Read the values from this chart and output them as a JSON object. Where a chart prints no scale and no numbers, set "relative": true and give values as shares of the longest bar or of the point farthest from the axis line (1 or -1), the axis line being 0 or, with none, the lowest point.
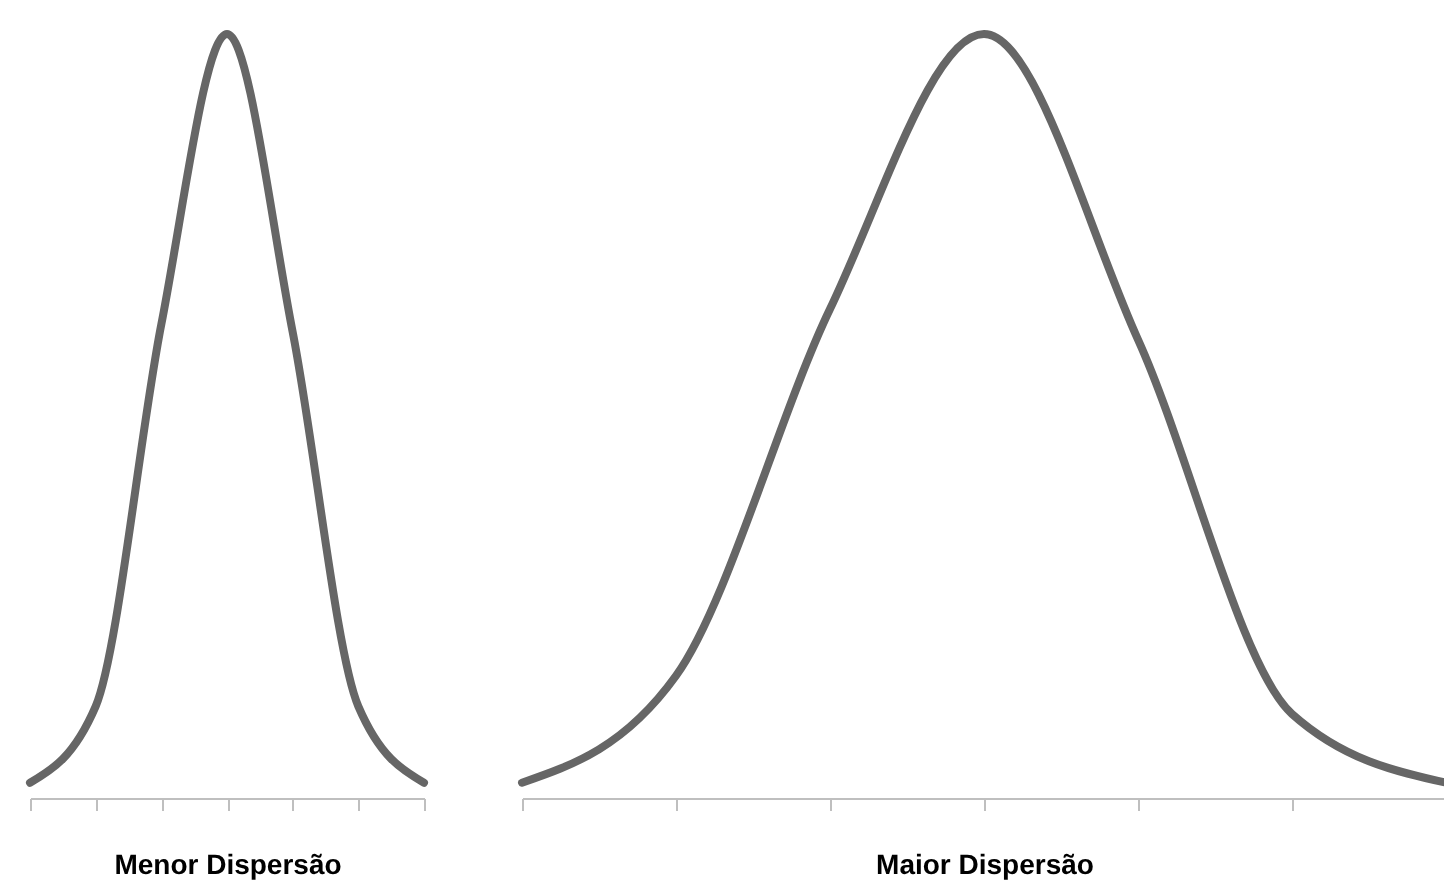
{
  "chart_data": [
    {
      "type": "line",
      "xlabel": "Menor Dispersão",
      "relative": true,
      "tick_labels": false,
      "categories": [
        null,
        null,
        null,
        null,
        null,
        null,
        null
      ],
      "series": [
        {
          "color": "#666666",
          "values": [
            0.02,
            0.12,
            0.62,
            1,
            0.61,
            0.12,
            0.02
          ]
        }
      ]
    },
    {
      "type": "line",
      "xlabel": "Maior Dispersão",
      "relative": true,
      "tick_labels": false,
      "categories": [
        null,
        null,
        null,
        null,
        null,
        null,
        null
      ],
      "series": [
        {
          "color": "#666666",
          "values": [
            0.02,
            0.16,
            0.64,
            1,
            0.6,
            0.11,
            0.02
          ]
        }
      ]
    }
  ]
}
